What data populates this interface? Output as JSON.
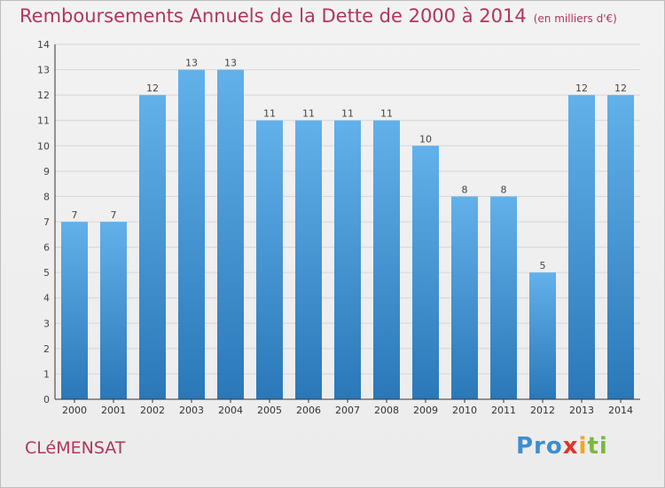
{
  "header": {
    "title": "Remboursements Annuels de la Dette de 2000 à 2014",
    "subtitle": "(en milliers d'€)"
  },
  "footer": {
    "commune": "CLéMENSAT",
    "logo_text": "Proxiti",
    "logo_parts": [
      "Pro",
      "x",
      "i",
      "ti"
    ]
  },
  "colors": {
    "bar_top": "#62b1ea",
    "bar_bottom": "#2a78b8",
    "title": "#b0365a",
    "grid": "#d6d6d6"
  },
  "chart_data": {
    "type": "bar",
    "title": "Remboursements Annuels de la Dette de 2000 à 2014",
    "subtitle": "(en milliers d'€)",
    "categories": [
      "2000",
      "2001",
      "2002",
      "2003",
      "2004",
      "2005",
      "2006",
      "2007",
      "2008",
      "2009",
      "2010",
      "2011",
      "2012",
      "2013",
      "2014"
    ],
    "values": [
      7,
      7,
      12,
      13,
      13,
      11,
      11,
      11,
      11,
      10,
      8,
      8,
      5,
      12,
      12
    ],
    "y_ticks": [
      0,
      1,
      2,
      3,
      4,
      5,
      6,
      7,
      8,
      9,
      10,
      11,
      12,
      13,
      14
    ],
    "ylim": [
      0,
      14
    ],
    "grid": true,
    "data_labels": true
  }
}
